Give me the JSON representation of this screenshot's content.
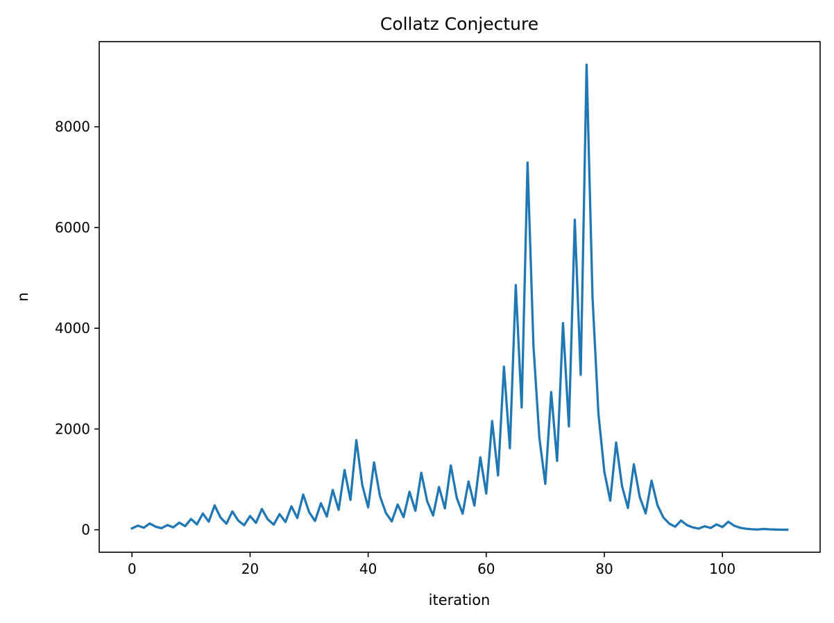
{
  "chart_data": {
    "type": "line",
    "title": "Collatz Conjecture",
    "xlabel": "iteration",
    "ylabel": "n",
    "xlim": [
      -5.55,
      116.55
    ],
    "ylim": [
      -446,
      9690
    ],
    "xticks": [
      0,
      20,
      40,
      60,
      80,
      100
    ],
    "yticks": [
      0,
      2000,
      4000,
      6000,
      8000
    ],
    "grid": false,
    "legend": "none",
    "colors": {
      "series": "#1f77b4"
    },
    "series": [
      {
        "values": [
          27,
          82,
          41,
          124,
          62,
          31,
          94,
          47,
          142,
          71,
          214,
          107,
          322,
          161,
          484,
          242,
          121,
          364,
          182,
          91,
          274,
          137,
          412,
          206,
          103,
          310,
          155,
          466,
          233,
          700,
          350,
          175,
          526,
          263,
          790,
          395,
          1186,
          593,
          1780,
          890,
          445,
          1336,
          668,
          334,
          167,
          502,
          251,
          754,
          377,
          1132,
          566,
          283,
          850,
          425,
          1276,
          638,
          319,
          958,
          479,
          1438,
          719,
          2158,
          1079,
          3238,
          1619,
          4858,
          2429,
          7288,
          3644,
          1822,
          911,
          2734,
          1367,
          4102,
          2051,
          6154,
          3077,
          9232,
          4616,
          2308,
          1154,
          577,
          1732,
          866,
          433,
          1300,
          650,
          325,
          976,
          488,
          244,
          122,
          61,
          184,
          92,
          46,
          23,
          70,
          35,
          106,
          53,
          160,
          80,
          40,
          20,
          10,
          5,
          16,
          8,
          4,
          2,
          1
        ]
      }
    ]
  }
}
